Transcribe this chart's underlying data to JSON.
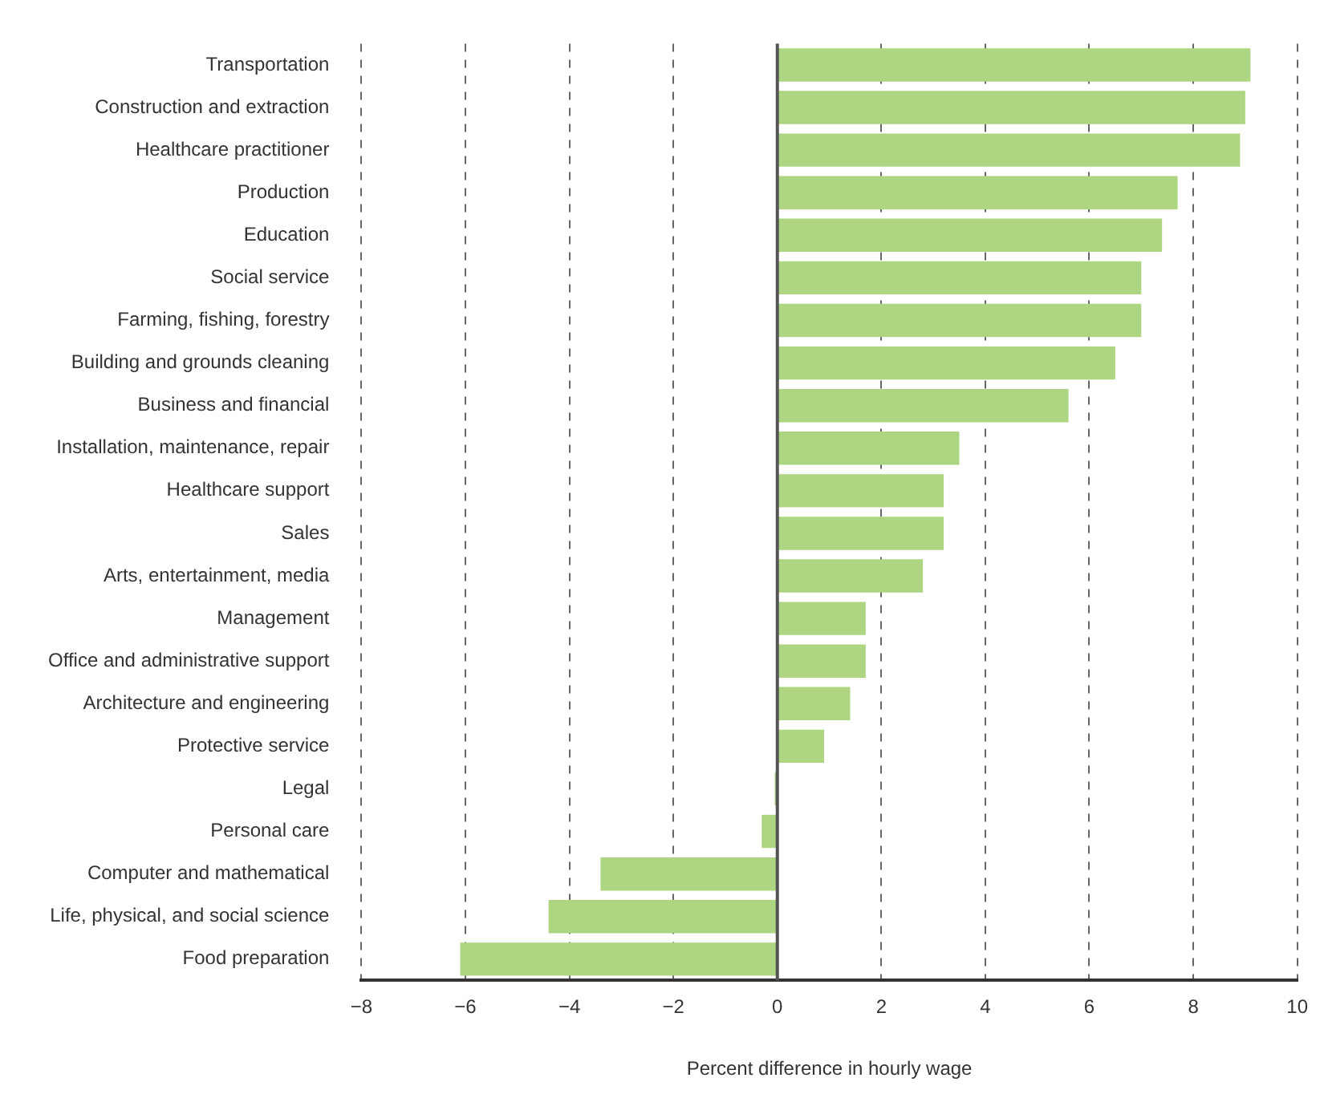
{
  "chart_data": {
    "type": "bar",
    "orientation": "horizontal",
    "xlabel": "Percent difference in hourly wage",
    "categories": [
      "Transportation",
      "Construction and extraction",
      "Healthcare practitioner",
      "Production",
      "Education",
      "Social service",
      "Farming, fishing, forestry",
      "Building and grounds cleaning",
      "Business and financial",
      "Installation, maintenance, repair",
      "Healthcare support",
      "Sales",
      "Arts, entertainment, media",
      "Management",
      "Office and administrative support",
      "Architecture and engineering",
      "Protective service",
      "Legal",
      "Personal care",
      "Computer and mathematical",
      "Life, physical, and social science",
      "Food preparation"
    ],
    "values": [
      9.1,
      9.0,
      8.9,
      7.7,
      7.4,
      7.0,
      7.0,
      6.5,
      5.6,
      3.5,
      3.2,
      3.2,
      2.8,
      1.7,
      1.7,
      1.4,
      0.9,
      -0.05,
      -0.3,
      -3.4,
      -4.4,
      -6.1
    ],
    "color": "#aed581",
    "xlim": [
      -8,
      10
    ],
    "xticks": [
      -8,
      -6,
      -4,
      -2,
      0,
      2,
      4,
      6,
      8,
      10
    ],
    "grid": "x",
    "legend": false,
    "ref_lines": [
      {
        "axis": "x",
        "value": 0,
        "color": "#555555"
      }
    ]
  }
}
